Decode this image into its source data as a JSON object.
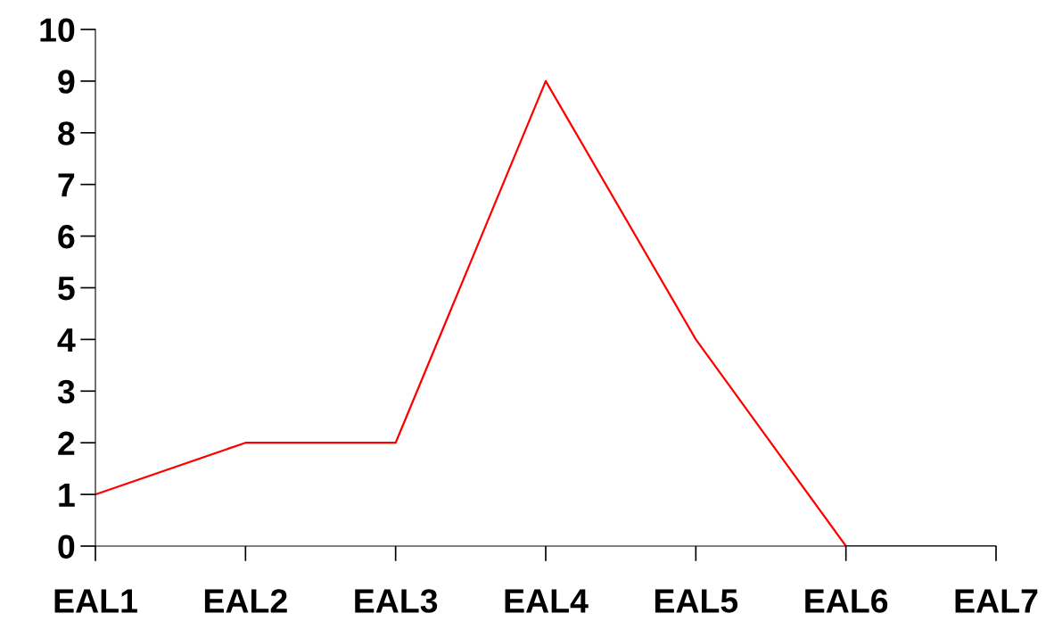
{
  "chart_data": {
    "type": "line",
    "categories": [
      "EAL1",
      "EAL2",
      "EAL3",
      "EAL4",
      "EAL5",
      "EAL6",
      "EAL7"
    ],
    "series": [
      {
        "color": "#ff0000",
        "values": [
          1,
          2,
          2,
          9,
          4,
          0,
          0
        ]
      }
    ],
    "ylim": [
      0,
      10
    ],
    "yticks": [
      0,
      1,
      2,
      3,
      4,
      5,
      6,
      7,
      8,
      9,
      10
    ],
    "grid": false,
    "legend": false,
    "marker": "none",
    "line_style": "solid"
  }
}
